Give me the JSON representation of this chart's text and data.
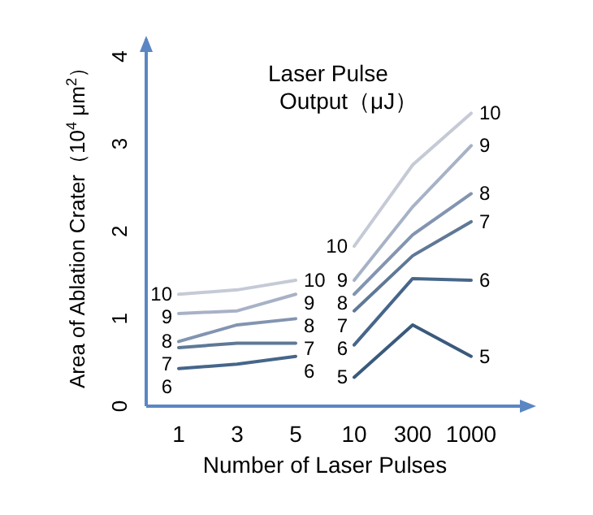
{
  "chart_data": {
    "type": "line",
    "ylabel": "Area of Ablation Crater（10$^{4}$ μm$^{2}$）",
    "xlabel": "Number of Laser Pulses",
    "legend_title": "Laser Pulse\nOutput（μJ）",
    "categories": [
      "1",
      "3",
      "5",
      "10",
      "300",
      "1000"
    ],
    "ylim": [
      0,
      4.2
    ],
    "yticks": [
      0,
      1,
      2,
      3,
      4
    ],
    "grid": false,
    "marker": "none",
    "line_style": "solid",
    "series": [
      {
        "name": "10",
        "color": "#c5cad6",
        "values": [
          1.28,
          1.33,
          1.44,
          null,
          null,
          null
        ]
      },
      {
        "name": "9",
        "color": "#a7b2c6",
        "values": [
          1.06,
          1.09,
          1.28,
          null,
          null,
          null
        ]
      },
      {
        "name": "8",
        "color": "#8294b0",
        "values": [
          0.74,
          0.93,
          1.0,
          null,
          null,
          null
        ]
      },
      {
        "name": "7",
        "color": "#5f7896",
        "values": [
          0.67,
          0.72,
          0.72,
          null,
          null,
          null
        ]
      },
      {
        "name": "6",
        "color": "#46668a",
        "values": [
          0.43,
          0.48,
          0.57,
          null,
          null,
          null
        ]
      },
      {
        "name": "10",
        "color": "#c5cad6",
        "values": [
          null,
          null,
          null,
          1.83,
          2.76,
          3.35
        ]
      },
      {
        "name": "9",
        "color": "#a7b2c6",
        "values": [
          null,
          null,
          null,
          1.44,
          2.28,
          2.98
        ]
      },
      {
        "name": "8",
        "color": "#8294b0",
        "values": [
          null,
          null,
          null,
          1.28,
          1.96,
          2.43
        ]
      },
      {
        "name": "7",
        "color": "#5f7896",
        "values": [
          null,
          null,
          null,
          1.09,
          1.72,
          2.11
        ]
      },
      {
        "name": "6",
        "color": "#46668a",
        "values": [
          null,
          null,
          null,
          0.7,
          1.46,
          1.44
        ]
      },
      {
        "name": "5",
        "color": "#3a5a7c",
        "values": [
          null,
          null,
          null,
          0.33,
          0.93,
          0.57
        ]
      }
    ]
  }
}
